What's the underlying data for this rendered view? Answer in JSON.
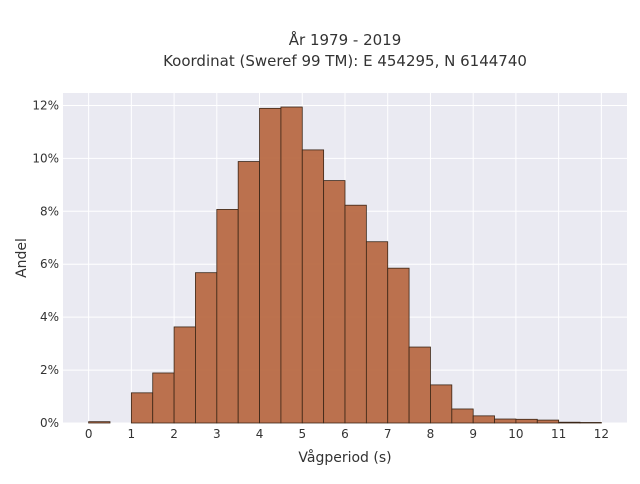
{
  "chart_data": {
    "type": "bar",
    "title_line1": "År 1979 - 2019",
    "title_line2": "Koordinat (Sweref 99 TM): E 454295, N 6144740",
    "xlabel": "Vågperiod (s)",
    "ylabel": "Andel",
    "xlim": [
      -0.6,
      12.6
    ],
    "ylim": [
      0,
      0.1247
    ],
    "xticks": [
      0,
      1,
      2,
      3,
      4,
      5,
      6,
      7,
      8,
      9,
      10,
      11,
      12
    ],
    "yticks": [
      0,
      0.02,
      0.04,
      0.06,
      0.08,
      0.1,
      0.12
    ],
    "ytick_labels": [
      "0%",
      "2%",
      "4%",
      "6%",
      "8%",
      "10%",
      "12%"
    ],
    "bin_width": 0.5,
    "bins": [
      {
        "start": 0.0,
        "value": 0.0005
      },
      {
        "start": 0.5,
        "value": 0.0
      },
      {
        "start": 1.0,
        "value": 0.0114
      },
      {
        "start": 1.5,
        "value": 0.0189
      },
      {
        "start": 2.0,
        "value": 0.0363
      },
      {
        "start": 2.5,
        "value": 0.0568
      },
      {
        "start": 3.0,
        "value": 0.0807
      },
      {
        "start": 3.5,
        "value": 0.0988
      },
      {
        "start": 4.0,
        "value": 0.1189
      },
      {
        "start": 4.5,
        "value": 0.1194
      },
      {
        "start": 5.0,
        "value": 0.1032
      },
      {
        "start": 5.5,
        "value": 0.0916
      },
      {
        "start": 6.0,
        "value": 0.0823
      },
      {
        "start": 6.5,
        "value": 0.0685
      },
      {
        "start": 7.0,
        "value": 0.0585
      },
      {
        "start": 7.5,
        "value": 0.0287
      },
      {
        "start": 8.0,
        "value": 0.0144
      },
      {
        "start": 8.5,
        "value": 0.0053
      },
      {
        "start": 9.0,
        "value": 0.0027
      },
      {
        "start": 9.5,
        "value": 0.0015
      },
      {
        "start": 10.0,
        "value": 0.0014
      },
      {
        "start": 10.5,
        "value": 0.0011
      },
      {
        "start": 11.0,
        "value": 0.0003
      },
      {
        "start": 11.5,
        "value": 0.0002
      }
    ],
    "bar_color": "#b86a44",
    "bar_edge_color": "#3a2516",
    "background_color": "#eaeaf2",
    "grid": true,
    "grid_color": "#ffffff"
  }
}
